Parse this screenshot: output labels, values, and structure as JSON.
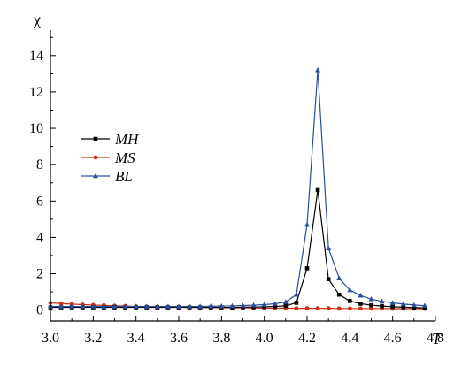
{
  "chart_data": {
    "type": "line",
    "title": "",
    "xlabel": "T",
    "ylabel": "χ",
    "xlim": [
      3.0,
      4.8
    ],
    "ylim": [
      -0.6,
      15.4
    ],
    "xticks": [
      "3.0",
      "3.2",
      "3.4",
      "3.6",
      "3.8",
      "4.0",
      "4.2",
      "4.4",
      "4.6",
      "4.8"
    ],
    "yticks": [
      "0",
      "2",
      "4",
      "6",
      "8",
      "10",
      "12",
      "14"
    ],
    "grid": false,
    "legend_position": "left-upper",
    "x": [
      3.0,
      3.05,
      3.1,
      3.15,
      3.2,
      3.25,
      3.3,
      3.35,
      3.4,
      3.45,
      3.5,
      3.55,
      3.6,
      3.65,
      3.7,
      3.75,
      3.8,
      3.85,
      3.9,
      3.95,
      4.0,
      4.05,
      4.1,
      4.15,
      4.2,
      4.25,
      4.3,
      4.35,
      4.4,
      4.45,
      4.5,
      4.55,
      4.6,
      4.65,
      4.7,
      4.75
    ],
    "series": [
      {
        "name": "MH",
        "color": "#000000",
        "marker": "square",
        "values": [
          0.15,
          0.15,
          0.15,
          0.15,
          0.15,
          0.15,
          0.15,
          0.15,
          0.15,
          0.15,
          0.15,
          0.15,
          0.15,
          0.15,
          0.15,
          0.15,
          0.15,
          0.15,
          0.16,
          0.17,
          0.18,
          0.2,
          0.24,
          0.4,
          2.3,
          6.6,
          1.7,
          0.85,
          0.5,
          0.35,
          0.27,
          0.22,
          0.18,
          0.16,
          0.14,
          0.12
        ]
      },
      {
        "name": "MS",
        "color": "#d03018",
        "marker": "circle",
        "values": [
          0.4,
          0.36,
          0.33,
          0.3,
          0.28,
          0.26,
          0.24,
          0.22,
          0.2,
          0.19,
          0.18,
          0.17,
          0.16,
          0.15,
          0.14,
          0.14,
          0.13,
          0.13,
          0.12,
          0.12,
          0.11,
          0.11,
          0.11,
          0.1,
          0.1,
          0.1,
          0.1,
          0.09,
          0.09,
          0.09,
          0.09,
          0.09,
          0.08,
          0.08,
          0.08,
          0.08
        ]
      },
      {
        "name": "BL",
        "color": "#2a4f9e",
        "marker": "triangle",
        "values": [
          0.2,
          0.2,
          0.2,
          0.2,
          0.2,
          0.2,
          0.2,
          0.2,
          0.2,
          0.2,
          0.2,
          0.2,
          0.2,
          0.2,
          0.2,
          0.21,
          0.22,
          0.23,
          0.25,
          0.27,
          0.3,
          0.35,
          0.45,
          0.85,
          4.7,
          13.2,
          3.4,
          1.75,
          1.1,
          0.8,
          0.6,
          0.48,
          0.4,
          0.33,
          0.28,
          0.24
        ]
      }
    ]
  }
}
